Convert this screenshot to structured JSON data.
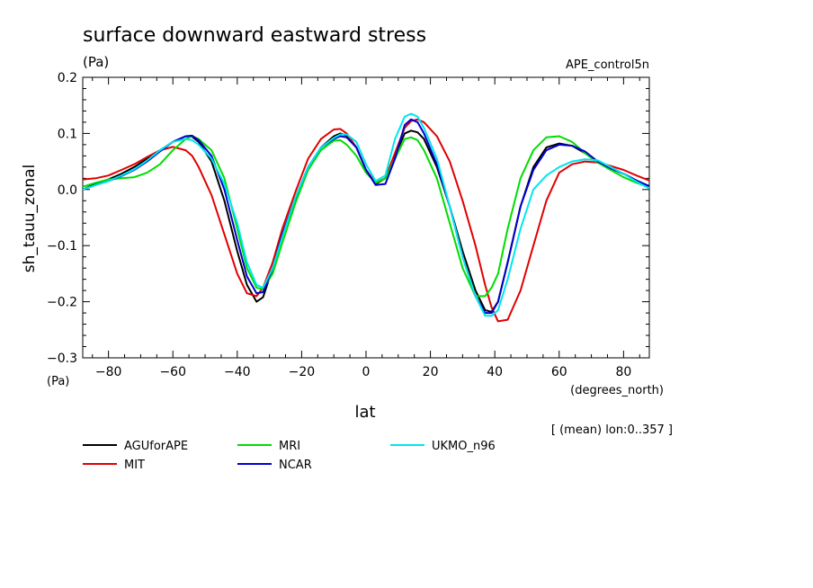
{
  "chart_data": {
    "type": "line",
    "title": "surface downward eastward stress",
    "ylabel_units": "(Pa)",
    "ylabel": "sh_tauu_zonal",
    "xlabel": "lat",
    "xlabel_units": "(degrees_north)",
    "dataset": "APE_control5n",
    "note": "[ (mean) lon:0..357 ]",
    "xlim": [
      -88,
      88
    ],
    "ylim": [
      -0.3,
      0.2
    ],
    "xticks": [
      -80,
      -60,
      -40,
      -20,
      0,
      20,
      40,
      60,
      80
    ],
    "xtick_labels": [
      "−80",
      "−60",
      "−40",
      "−20",
      "0",
      "20",
      "40",
      "60",
      "80"
    ],
    "yticks": [
      -0.3,
      -0.2,
      -0.1,
      0.0,
      0.1,
      0.2
    ],
    "ytick_labels": [
      "−0.3",
      "−0.2",
      "−0.1",
      "0.0",
      "0.1",
      "0.2"
    ],
    "grid": false,
    "legend_position": "bottom",
    "series": [
      {
        "name": "AGUforAPE",
        "color": "#000000",
        "x": [
          -88,
          -84,
          -80,
          -76,
          -72,
          -68,
          -64,
          -60,
          -56,
          -54,
          -52,
          -48,
          -44,
          -40,
          -37,
          -34,
          -32,
          -29,
          -26,
          -22,
          -18,
          -14,
          -10,
          -8,
          -6,
          -3,
          0,
          3,
          6,
          9,
          12,
          14,
          16,
          18,
          22,
          26,
          30,
          34,
          37,
          39,
          41,
          44,
          48,
          52,
          56,
          60,
          64,
          68,
          72,
          76,
          80,
          84,
          88
        ],
        "y": [
          0.0,
          0.01,
          0.018,
          0.028,
          0.04,
          0.055,
          0.07,
          0.085,
          0.095,
          0.094,
          0.085,
          0.05,
          -0.02,
          -0.11,
          -0.17,
          -0.2,
          -0.192,
          -0.14,
          -0.08,
          -0.02,
          0.035,
          0.075,
          0.095,
          0.1,
          0.096,
          0.075,
          0.035,
          0.01,
          0.02,
          0.06,
          0.1,
          0.105,
          0.102,
          0.09,
          0.04,
          -0.03,
          -0.11,
          -0.18,
          -0.215,
          -0.218,
          -0.2,
          -0.13,
          -0.03,
          0.04,
          0.075,
          0.082,
          0.078,
          0.065,
          0.048,
          0.038,
          0.028,
          0.016,
          0.006
        ]
      },
      {
        "name": "MIT",
        "color": "#e00000",
        "x": [
          -88,
          -84,
          -80,
          -76,
          -72,
          -68,
          -64,
          -60,
          -56,
          -54,
          -52,
          -48,
          -44,
          -40,
          -37,
          -34,
          -32,
          -29,
          -26,
          -22,
          -18,
          -14,
          -10,
          -8,
          -6,
          -3,
          0,
          3,
          6,
          9,
          12,
          14,
          16,
          18,
          22,
          26,
          30,
          34,
          37,
          39,
          41,
          44,
          48,
          52,
          56,
          60,
          64,
          68,
          72,
          76,
          80,
          84,
          88
        ],
        "y": [
          0.018,
          0.02,
          0.025,
          0.035,
          0.045,
          0.058,
          0.07,
          0.076,
          0.07,
          0.06,
          0.04,
          -0.01,
          -0.08,
          -0.15,
          -0.185,
          -0.19,
          -0.175,
          -0.13,
          -0.07,
          -0.005,
          0.055,
          0.09,
          0.107,
          0.108,
          0.1,
          0.075,
          0.035,
          0.012,
          0.02,
          0.065,
          0.11,
          0.122,
          0.125,
          0.12,
          0.095,
          0.05,
          -0.02,
          -0.1,
          -0.17,
          -0.21,
          -0.235,
          -0.232,
          -0.18,
          -0.1,
          -0.02,
          0.03,
          0.045,
          0.05,
          0.048,
          0.042,
          0.035,
          0.025,
          0.016
        ]
      },
      {
        "name": "MRI",
        "color": "#00dd00",
        "x": [
          -88,
          -84,
          -80,
          -76,
          -72,
          -68,
          -64,
          -60,
          -56,
          -54,
          -52,
          -48,
          -44,
          -40,
          -37,
          -34,
          -32,
          -29,
          -26,
          -22,
          -18,
          -14,
          -10,
          -8,
          -6,
          -3,
          0,
          3,
          6,
          9,
          12,
          14,
          16,
          18,
          22,
          26,
          30,
          34,
          37,
          39,
          41,
          44,
          48,
          52,
          56,
          60,
          64,
          68,
          72,
          76,
          80,
          84,
          88
        ],
        "y": [
          0.005,
          0.012,
          0.018,
          0.02,
          0.022,
          0.03,
          0.045,
          0.07,
          0.09,
          0.095,
          0.09,
          0.07,
          0.02,
          -0.07,
          -0.14,
          -0.175,
          -0.178,
          -0.15,
          -0.095,
          -0.025,
          0.035,
          0.07,
          0.087,
          0.088,
          0.08,
          0.06,
          0.03,
          0.012,
          0.02,
          0.055,
          0.09,
          0.093,
          0.088,
          0.07,
          0.02,
          -0.06,
          -0.14,
          -0.19,
          -0.19,
          -0.175,
          -0.15,
          -0.07,
          0.02,
          0.07,
          0.093,
          0.095,
          0.085,
          0.065,
          0.048,
          0.035,
          0.022,
          0.012,
          0.004
        ]
      },
      {
        "name": "NCAR",
        "color": "#0000cc",
        "x": [
          -88,
          -84,
          -80,
          -76,
          -72,
          -68,
          -64,
          -60,
          -56,
          -54,
          -52,
          -48,
          -44,
          -40,
          -37,
          -34,
          -32,
          -29,
          -26,
          -22,
          -18,
          -14,
          -10,
          -8,
          -6,
          -3,
          0,
          3,
          6,
          9,
          12,
          14,
          16,
          18,
          22,
          26,
          30,
          34,
          37,
          39,
          41,
          44,
          48,
          52,
          56,
          60,
          64,
          68,
          72,
          76,
          80,
          84,
          88
        ],
        "y": [
          0.0,
          0.008,
          0.015,
          0.024,
          0.035,
          0.05,
          0.068,
          0.085,
          0.095,
          0.096,
          0.088,
          0.06,
          0.0,
          -0.09,
          -0.155,
          -0.185,
          -0.183,
          -0.14,
          -0.08,
          -0.015,
          0.04,
          0.075,
          0.09,
          0.095,
          0.093,
          0.075,
          0.035,
          0.008,
          0.01,
          0.055,
          0.115,
          0.125,
          0.12,
          0.1,
          0.045,
          -0.03,
          -0.12,
          -0.19,
          -0.22,
          -0.22,
          -0.2,
          -0.13,
          -0.03,
          0.035,
          0.07,
          0.08,
          0.078,
          0.068,
          0.05,
          0.038,
          0.028,
          0.016,
          0.006
        ]
      },
      {
        "name": "UKMO_n96",
        "color": "#00e5ee",
        "x": [
          -88,
          -84,
          -80,
          -76,
          -72,
          -68,
          -64,
          -60,
          -56,
          -54,
          -52,
          -48,
          -44,
          -40,
          -37,
          -34,
          -32,
          -29,
          -26,
          -22,
          -18,
          -14,
          -10,
          -8,
          -6,
          -3,
          0,
          3,
          6,
          9,
          12,
          14,
          16,
          18,
          22,
          26,
          30,
          34,
          37,
          39,
          41,
          44,
          48,
          52,
          56,
          60,
          64,
          68,
          72,
          76,
          80,
          84,
          88
        ],
        "y": [
          0.0,
          0.008,
          0.015,
          0.025,
          0.036,
          0.052,
          0.07,
          0.085,
          0.09,
          0.088,
          0.08,
          0.055,
          0.01,
          -0.06,
          -0.13,
          -0.17,
          -0.175,
          -0.14,
          -0.085,
          -0.015,
          0.04,
          0.075,
          0.092,
          0.098,
          0.098,
          0.085,
          0.045,
          0.015,
          0.025,
          0.09,
          0.13,
          0.135,
          0.13,
          0.11,
          0.055,
          -0.03,
          -0.12,
          -0.19,
          -0.225,
          -0.225,
          -0.215,
          -0.16,
          -0.07,
          0.0,
          0.025,
          0.04,
          0.05,
          0.054,
          0.052,
          0.04,
          0.028,
          0.014,
          0.002
        ]
      }
    ]
  }
}
